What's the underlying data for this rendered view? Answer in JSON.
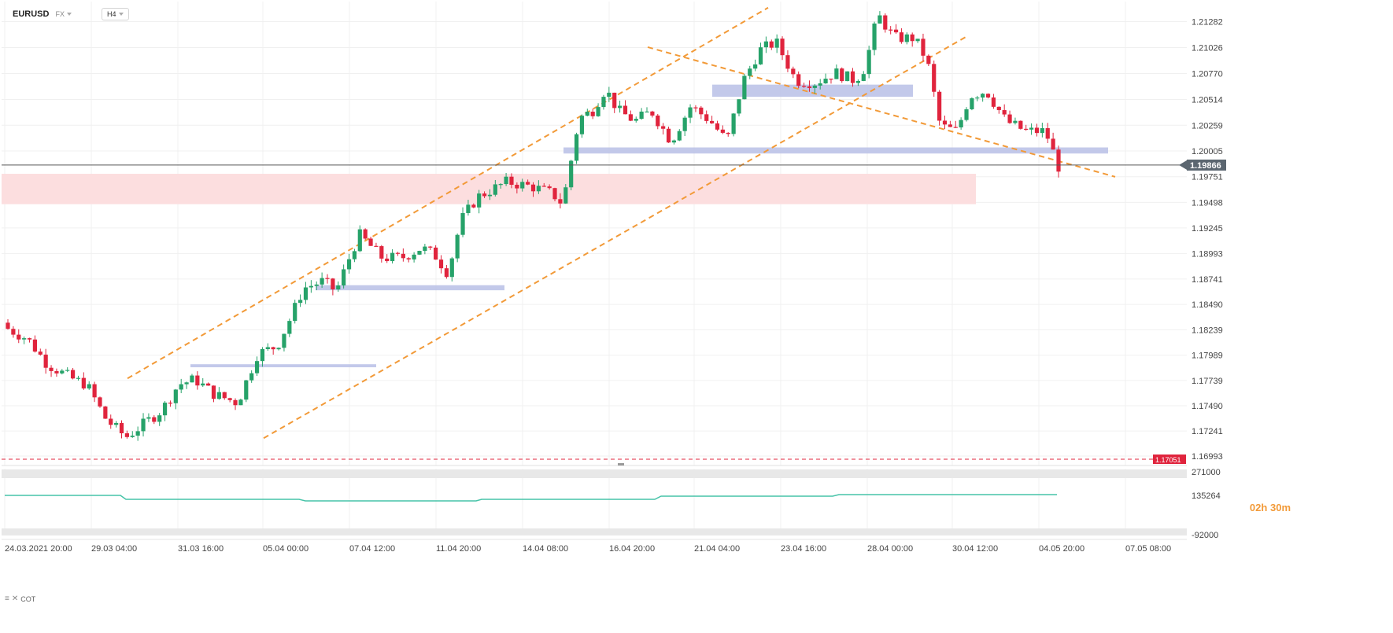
{
  "header": {
    "symbol": "EURUSD",
    "market": "FX",
    "timeframe": "H4"
  },
  "countdown": {
    "hours": "02",
    "h_unit": "h",
    "minutes": "30",
    "m_unit": "m"
  },
  "current_price": "1.19866",
  "alert_price": "1.17051",
  "indicator": {
    "label": "COT",
    "ticks": [
      "271000",
      "135264",
      "-92000"
    ]
  },
  "colors": {
    "bull": "#26a269",
    "bear": "#e0243d",
    "trend": "#f29a38",
    "zone_blue": "#b9bfe6",
    "zone_red": "#fcdedf"
  },
  "chart_data": {
    "type": "candlestick",
    "y_ticks": [
      "1.21282",
      "1.21026",
      "1.20770",
      "1.20514",
      "1.20259",
      "1.20005",
      "1.19751",
      "1.19498",
      "1.19245",
      "1.18993",
      "1.18741",
      "1.18490",
      "1.18239",
      "1.17989",
      "1.17739",
      "1.17490",
      "1.17241",
      "1.16993"
    ],
    "x_ticks": [
      "24.03.2021  20:00",
      "29.03  04:00",
      "31.03  16:00",
      "05.04  00:00",
      "07.04  12:00",
      "11.04  20:00",
      "14.04  08:00",
      "16.04  20:00",
      "21.04  04:00",
      "23.04  16:00",
      "28.04  00:00",
      "30.04  12:00",
      "04.05  20:00",
      "07.05  08:00"
    ],
    "ylim": [
      1.169,
      1.2148
    ],
    "candles_count": 195
  }
}
